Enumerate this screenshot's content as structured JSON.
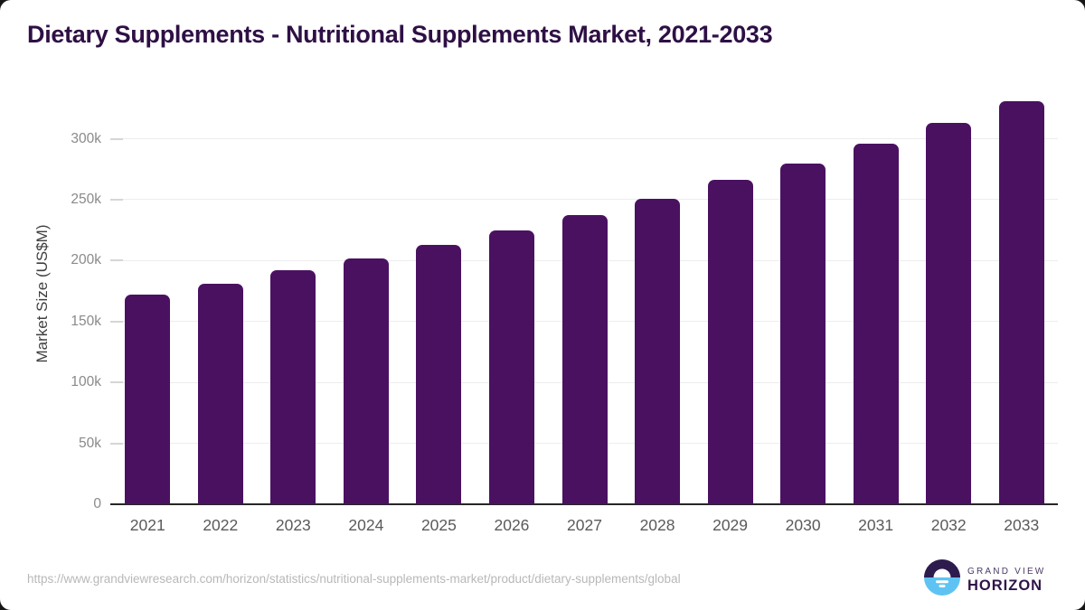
{
  "chart_data": {
    "type": "bar",
    "title": "Dietary Supplements - Nutritional Supplements Market, 2021-2033",
    "xlabel": "",
    "ylabel": "Market Size (US$M)",
    "categories": [
      "2021",
      "2022",
      "2023",
      "2024",
      "2025",
      "2026",
      "2027",
      "2028",
      "2029",
      "2030",
      "2031",
      "2032",
      "2033"
    ],
    "values": [
      172000,
      181000,
      192000,
      202000,
      213000,
      225000,
      237000,
      251000,
      266000,
      280000,
      296000,
      313000,
      331000
    ],
    "unit": "US$M",
    "ylim": [
      0,
      336000
    ],
    "yticks": [
      {
        "value": 0,
        "label": "0"
      },
      {
        "value": 50000,
        "label": "50k"
      },
      {
        "value": 100000,
        "label": "100k"
      },
      {
        "value": 150000,
        "label": "150k"
      },
      {
        "value": 200000,
        "label": "200k"
      },
      {
        "value": 250000,
        "label": "250k"
      },
      {
        "value": 300000,
        "label": "300k"
      }
    ],
    "grid": "horizontal",
    "legend": "none",
    "bar_color": "#4a1161"
  },
  "footer": {
    "source_url": "https://www.grandviewresearch.com/horizon/statistics/nutritional-supplements-market/product/dietary-supplements/global",
    "logo": {
      "line1": "GRAND VIEW",
      "line2": "HORIZON"
    }
  },
  "colors": {
    "bar": "#4a1161",
    "title_text": "#2e1045",
    "logo_navy": "#2d1b4e",
    "logo_blue": "#5ec3f2",
    "logo_white": "#ffffff"
  }
}
